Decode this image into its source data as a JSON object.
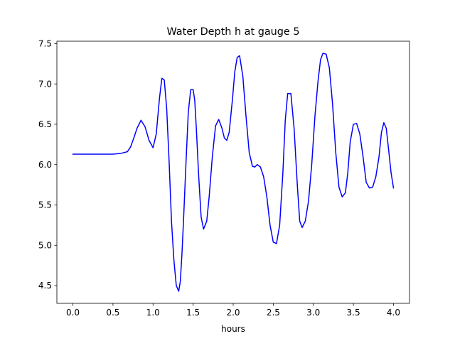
{
  "chart_data": {
    "type": "line",
    "title": "Water Depth h at gauge 5",
    "xlabel": "hours",
    "ylabel": "",
    "xlim": [
      -0.2,
      4.2
    ],
    "ylim": [
      4.28,
      7.53
    ],
    "xticks": [
      0.0,
      0.5,
      1.0,
      1.5,
      2.0,
      2.5,
      3.0,
      3.5,
      4.0
    ],
    "xtick_labels": [
      "0.0",
      "0.5",
      "1.0",
      "1.5",
      "2.0",
      "2.5",
      "3.0",
      "3.5",
      "4.0"
    ],
    "yticks": [
      4.5,
      5.0,
      5.5,
      6.0,
      6.5,
      7.0,
      7.5
    ],
    "ytick_labels": [
      "4.5",
      "5.0",
      "5.5",
      "6.0",
      "6.5",
      "7.0",
      "7.5"
    ],
    "grid": false,
    "legend": "none",
    "series": [
      {
        "color": "#0000ff",
        "x": [
          0.0,
          0.2,
          0.4,
          0.5,
          0.6,
          0.68,
          0.72,
          0.76,
          0.8,
          0.85,
          0.9,
          0.95,
          1.0,
          1.04,
          1.08,
          1.11,
          1.14,
          1.17,
          1.2,
          1.23,
          1.26,
          1.29,
          1.32,
          1.34,
          1.36,
          1.38,
          1.41,
          1.44,
          1.47,
          1.5,
          1.52,
          1.54,
          1.57,
          1.6,
          1.63,
          1.67,
          1.7,
          1.74,
          1.78,
          1.82,
          1.86,
          1.89,
          1.92,
          1.95,
          1.99,
          2.02,
          2.05,
          2.08,
          2.12,
          2.16,
          2.2,
          2.24,
          2.27,
          2.3,
          2.34,
          2.38,
          2.42,
          2.46,
          2.5,
          2.54,
          2.58,
          2.62,
          2.65,
          2.68,
          2.72,
          2.76,
          2.8,
          2.83,
          2.86,
          2.9,
          2.94,
          2.98,
          3.02,
          3.06,
          3.09,
          3.12,
          3.16,
          3.2,
          3.24,
          3.28,
          3.32,
          3.36,
          3.4,
          3.43,
          3.46,
          3.5,
          3.54,
          3.58,
          3.62,
          3.66,
          3.7,
          3.74,
          3.78,
          3.82,
          3.85,
          3.88,
          3.91,
          3.94,
          3.97,
          4.0
        ],
        "values": [
          6.13,
          6.13,
          6.13,
          6.13,
          6.14,
          6.16,
          6.22,
          6.33,
          6.45,
          6.55,
          6.47,
          6.3,
          6.21,
          6.38,
          6.82,
          7.07,
          7.05,
          6.7,
          6.05,
          5.3,
          4.82,
          4.5,
          4.43,
          4.55,
          4.88,
          5.3,
          6.0,
          6.65,
          6.93,
          6.93,
          6.8,
          6.45,
          5.85,
          5.35,
          5.2,
          5.3,
          5.6,
          6.1,
          6.48,
          6.56,
          6.45,
          6.33,
          6.3,
          6.4,
          6.8,
          7.15,
          7.33,
          7.35,
          7.1,
          6.6,
          6.15,
          5.98,
          5.97,
          6.0,
          5.97,
          5.85,
          5.6,
          5.25,
          5.04,
          5.02,
          5.25,
          5.9,
          6.55,
          6.88,
          6.88,
          6.45,
          5.75,
          5.3,
          5.22,
          5.3,
          5.55,
          6.0,
          6.6,
          7.05,
          7.3,
          7.38,
          7.37,
          7.2,
          6.75,
          6.15,
          5.72,
          5.6,
          5.65,
          5.9,
          6.28,
          6.5,
          6.51,
          6.38,
          6.1,
          5.78,
          5.71,
          5.72,
          5.85,
          6.1,
          6.4,
          6.52,
          6.45,
          6.18,
          5.9,
          5.71
        ]
      }
    ]
  }
}
